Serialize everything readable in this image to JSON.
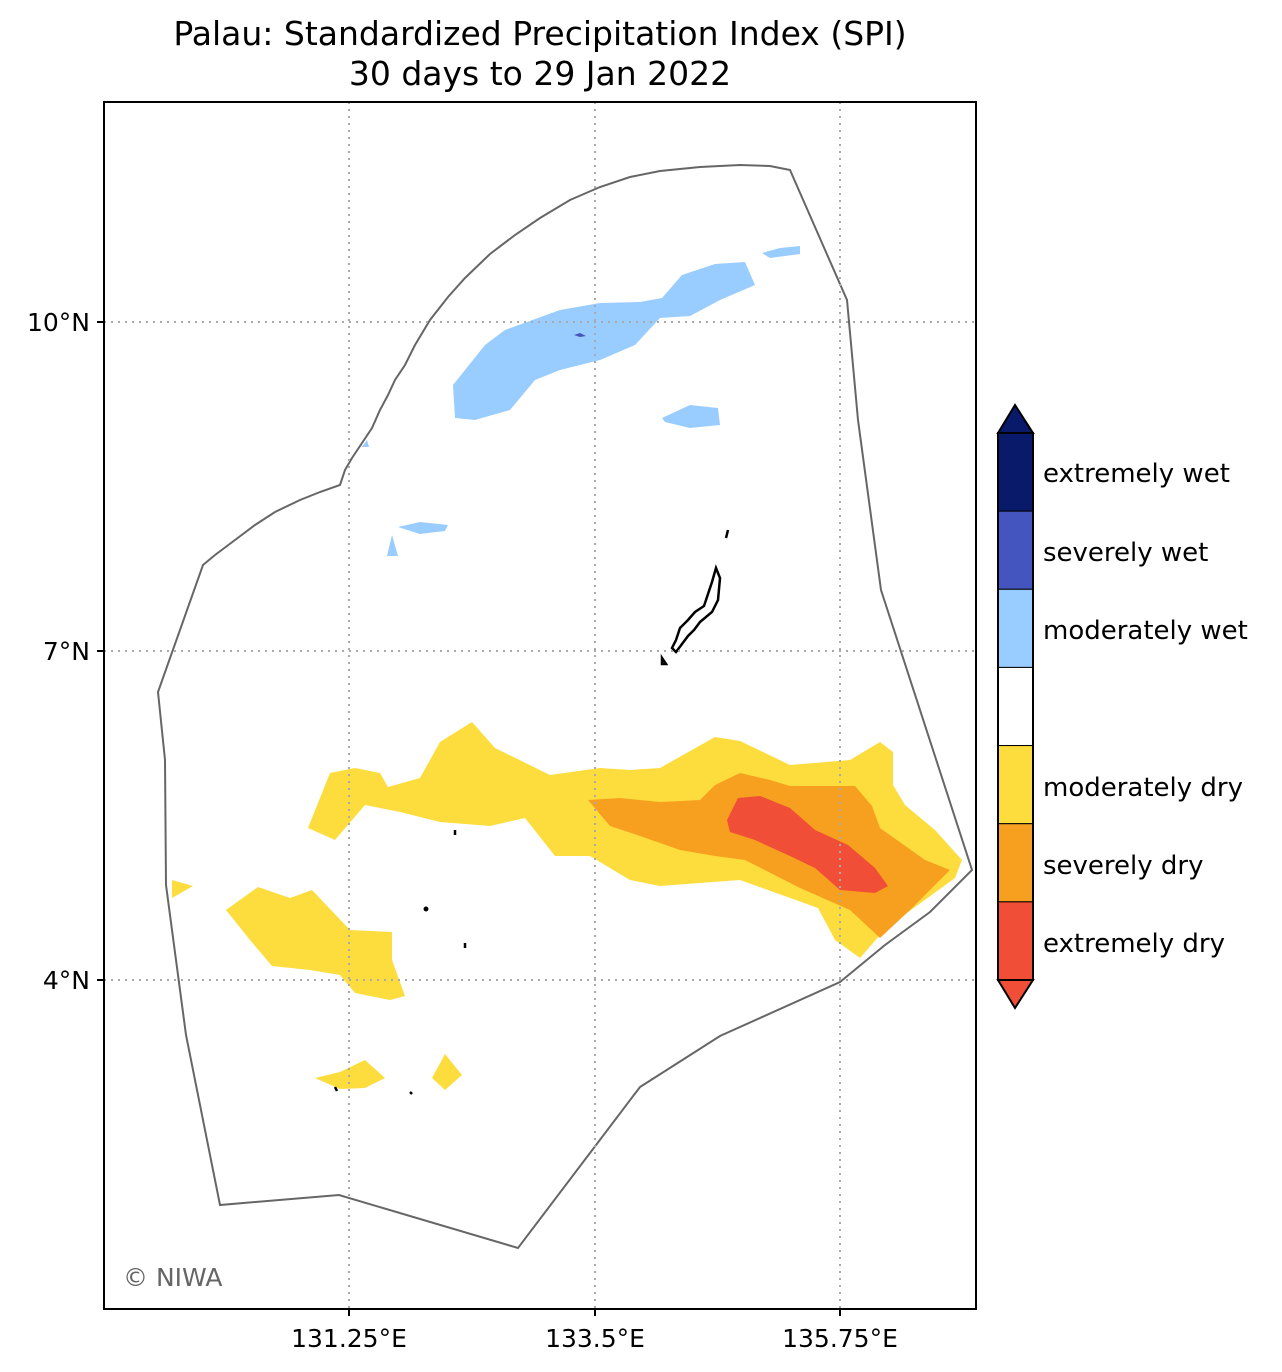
{
  "title": {
    "line1": "Palau: Standardized Precipitation Index (SPI)",
    "line2": "30 days to 29 Jan 2022"
  },
  "axes": {
    "x_ticks": [
      "131.25°E",
      "133.5°E",
      "135.75°E"
    ],
    "y_ticks": [
      "10°N",
      "7°N",
      "4°N"
    ],
    "gridlines": "dotted"
  },
  "legend": {
    "placement": "right",
    "categories": [
      {
        "label": "extremely wet",
        "color": "#0a1a6b"
      },
      {
        "label": "severely wet",
        "color": "#4555c0"
      },
      {
        "label": "moderately wet",
        "color": "#99ccff"
      },
      {
        "label": "",
        "color": "#ffffff"
      },
      {
        "label": "moderately dry",
        "color": "#fddd3d"
      },
      {
        "label": "severely dry",
        "color": "#f7a020"
      },
      {
        "label": "extremely dry",
        "color": "#f04e36"
      }
    ]
  },
  "credit": "© NIWA",
  "colors": {
    "boundary": "#666666",
    "grid": "#aaaaaa",
    "land": "#000000"
  }
}
